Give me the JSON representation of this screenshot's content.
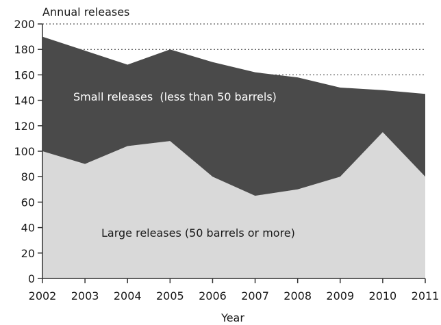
{
  "chart_data": {
    "type": "area",
    "stacked": true,
    "title": "Annual releases",
    "xlabel": "Year",
    "ylabel": "",
    "x": [
      2002,
      2003,
      2004,
      2005,
      2006,
      2007,
      2008,
      2009,
      2010,
      2011
    ],
    "ylim": [
      0,
      200
    ],
    "yticks": [
      0,
      20,
      40,
      60,
      80,
      100,
      120,
      140,
      160,
      180,
      200
    ],
    "grid": "horizontal dotted above 160",
    "series": [
      {
        "name": "Large releases (50 barrels or more)",
        "values": [
          100,
          90,
          104,
          108,
          80,
          65,
          70,
          80,
          115,
          80
        ],
        "color": "#d9d9d9"
      },
      {
        "name": "Small releases  (less than 50 barrels)",
        "values": [
          90,
          89,
          64,
          72,
          90,
          97,
          88,
          70,
          33,
          65
        ],
        "color": "#4a4a4a"
      }
    ]
  }
}
